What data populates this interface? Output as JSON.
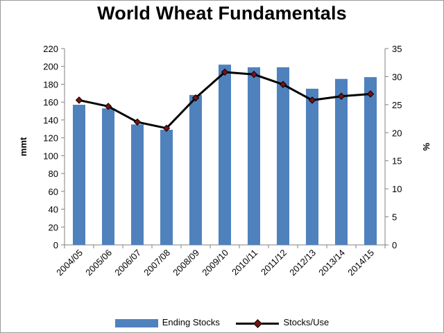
{
  "chart_data": {
    "type": "bar",
    "title": "World Wheat Fundamentals",
    "categories": [
      "2004/05",
      "2005/06",
      "2006/07",
      "2007/08",
      "2008/09",
      "2009/10",
      "2010/11",
      "2011/12",
      "2012/13",
      "2013/14",
      "2014/15"
    ],
    "series": [
      {
        "name": "Ending Stocks",
        "type": "bar",
        "axis": "left",
        "color": "#4f81bd",
        "values": [
          157,
          153,
          135,
          129,
          168,
          202,
          199,
          199,
          175,
          186,
          188
        ]
      },
      {
        "name": "Stocks/Use",
        "type": "line",
        "axis": "right",
        "color": "#000000",
        "marker_color": "#7a1111",
        "values": [
          25.8,
          24.7,
          21.9,
          20.8,
          26.2,
          30.8,
          30.4,
          28.6,
          25.8,
          26.5,
          26.9
        ]
      }
    ],
    "ylabel": "mmt",
    "ylim": [
      0,
      220
    ],
    "y_ticks": [
      "0",
      "20",
      "40",
      "60",
      "80",
      "100",
      "120",
      "140",
      "160",
      "180",
      "200",
      "220"
    ],
    "y2label": "%",
    "y2lim": [
      0,
      35
    ],
    "y2_ticks": [
      "0",
      "5",
      "10",
      "15",
      "20",
      "25",
      "30",
      "35"
    ],
    "grid": false,
    "legend_position": "bottom"
  }
}
